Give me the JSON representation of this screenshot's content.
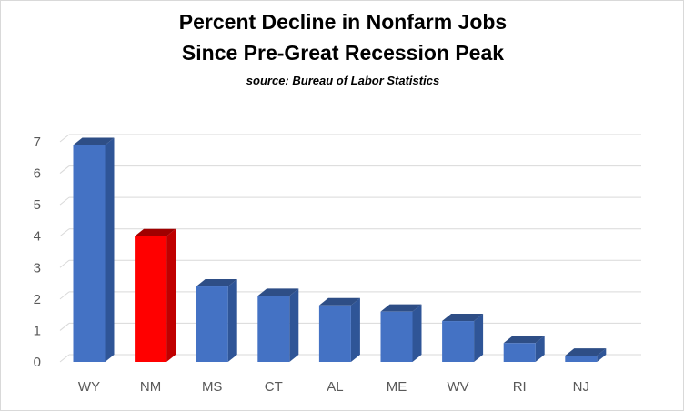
{
  "chart_data": {
    "type": "bar",
    "title_line1": "Percent Decline in Nonfarm Jobs",
    "title_line2": "Since Pre-Great Recession Peak",
    "subtitle": "source: Bureau of Labor Statistics",
    "categories": [
      "WY",
      "NM",
      "MS",
      "CT",
      "AL",
      "ME",
      "WV",
      "RI",
      "NJ"
    ],
    "values": [
      6.9,
      4.0,
      2.4,
      2.1,
      1.8,
      1.6,
      1.3,
      0.6,
      0.2
    ],
    "highlight_category": "NM",
    "ylim": [
      0,
      7
    ],
    "yticks": [
      0,
      1,
      2,
      3,
      4,
      5,
      6,
      7
    ],
    "grid": true,
    "style": "3d-bar",
    "colors": {
      "bar": "#4472c4",
      "bar_side": "#2f5597",
      "bar_top": "#2e4e86",
      "highlight": "#ff0000",
      "highlight_side": "#c00000",
      "highlight_top": "#a00000",
      "grid": "#d9d9d9",
      "text": "#595959"
    }
  }
}
